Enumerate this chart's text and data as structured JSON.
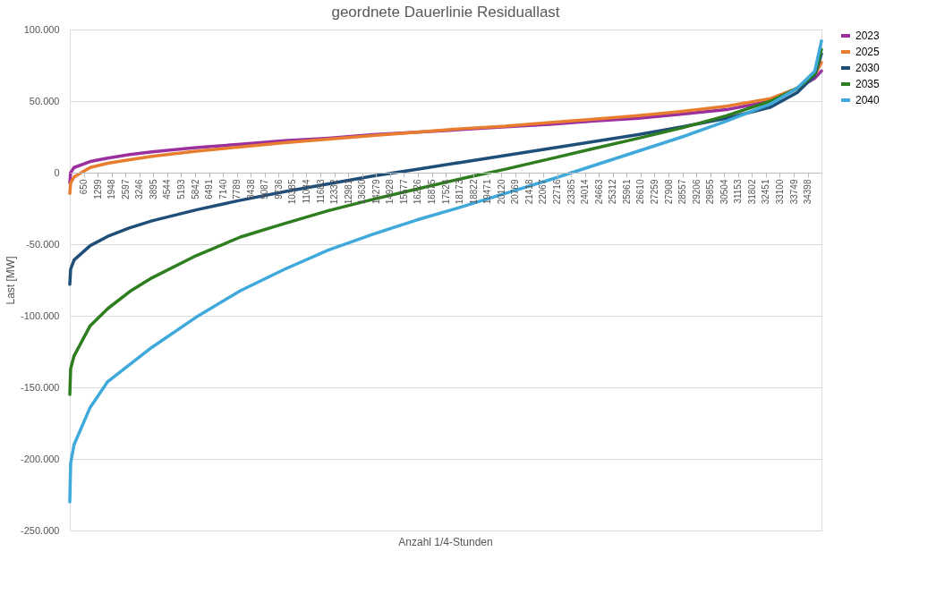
{
  "chart_data": {
    "type": "line",
    "title": "geordnete Dauerlinie Residuallast",
    "xlabel": "Anzahl 1/4-Stunden",
    "ylabel": "Last [MW]",
    "x": [
      1,
      40,
      200,
      950,
      1770,
      2800,
      3830,
      5890,
      7950,
      10010,
      12070,
      14130,
      16190,
      18250,
      20310,
      22370,
      24430,
      26490,
      28550,
      30610,
      32670,
      33910,
      34730,
      35040
    ],
    "series": [
      {
        "name": "2023",
        "color": "#9b2f9e",
        "values": [
          -7000,
          0,
          3600,
          7800,
          10200,
          12700,
          14500,
          17500,
          19900,
          22300,
          24100,
          26500,
          28300,
          30100,
          32000,
          33700,
          36100,
          38000,
          41000,
          44000,
          50000,
          59000,
          66000,
          71000
        ]
      },
      {
        "name": "2025",
        "color": "#e87d2f",
        "values": [
          -14500,
          -7200,
          -3000,
          3600,
          6600,
          9000,
          11400,
          15000,
          18000,
          21000,
          23500,
          26000,
          28300,
          30700,
          32500,
          35000,
          37300,
          39800,
          42800,
          46400,
          51800,
          59000,
          68000,
          77000
        ]
      },
      {
        "name": "2030",
        "color": "#1f4e79",
        "values": [
          -78000,
          -67500,
          -61000,
          -51000,
          -44500,
          -38500,
          -33700,
          -26000,
          -19300,
          -13300,
          -7800,
          -2400,
          2400,
          7200,
          12000,
          16900,
          21700,
          26500,
          32000,
          38000,
          45800,
          56000,
          68000,
          83000
        ]
      },
      {
        "name": "2035",
        "color": "#2e7d1e",
        "values": [
          -155000,
          -137000,
          -128000,
          -107000,
          -95000,
          -83000,
          -73500,
          -58000,
          -45000,
          -35500,
          -26500,
          -18700,
          -11400,
          -4200,
          2400,
          9600,
          16900,
          24000,
          31300,
          39800,
          50000,
          59000,
          69000,
          86000
        ]
      },
      {
        "name": "2040",
        "color": "#3fa9db",
        "values": [
          -230000,
          -203000,
          -190000,
          -164000,
          -146000,
          -134000,
          -122000,
          -101000,
          -82500,
          -67500,
          -54000,
          -43000,
          -33000,
          -24000,
          -14500,
          -5000,
          5000,
          15000,
          25000,
          36000,
          48000,
          59000,
          71000,
          92000
        ]
      }
    ],
    "xlim": [
      1,
      35040
    ],
    "xticks": [
      650,
      1299,
      1948,
      2597,
      3246,
      3895,
      4544,
      5193,
      5842,
      6491,
      7140,
      7789,
      8438,
      9087,
      9736,
      10385,
      11034,
      11683,
      12332,
      12981,
      13630,
      14279,
      14928,
      15577,
      16226,
      16875,
      17524,
      18173,
      18822,
      19471,
      20120,
      20769,
      21418,
      22067,
      22716,
      23365,
      24014,
      24663,
      25312,
      25961,
      26610,
      27259,
      27908,
      28557,
      29206,
      29855,
      30504,
      31153,
      31802,
      32451,
      33100,
      33749,
      34398
    ],
    "ylim": [
      -250000,
      100000
    ],
    "yticks": [
      {
        "value": -250000,
        "label": "-250.000"
      },
      {
        "value": -200000,
        "label": "-200.000"
      },
      {
        "value": -150000,
        "label": "-150.000"
      },
      {
        "value": -100000,
        "label": "-100.000"
      },
      {
        "value": -50000,
        "label": "-50.000"
      },
      0,
      {
        "value": 50000,
        "label": "50.000"
      },
      {
        "value": 100000,
        "label": "100.000"
      }
    ],
    "grid": "y",
    "legend": "right",
    "line_style": "solid",
    "marker": "none"
  }
}
